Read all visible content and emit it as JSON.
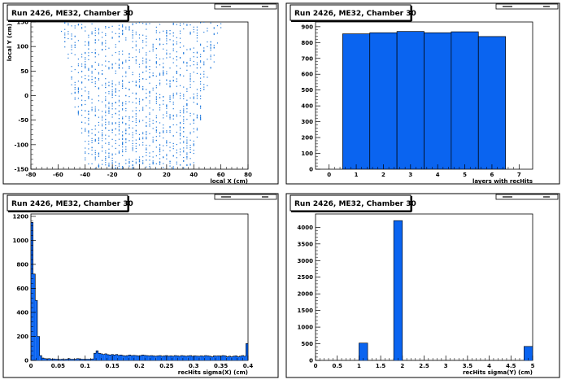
{
  "chart_data": [
    {
      "type": "scatter",
      "title": "Run 2426, ME32, Chamber 30",
      "xlabel": "local X (cm)",
      "ylabel": "local Y (cm)",
      "xlim": [
        -80,
        80
      ],
      "ylim": [
        -150,
        150
      ],
      "xticks": [
        -80,
        -60,
        -40,
        -20,
        0,
        20,
        40,
        60,
        80
      ],
      "yticks": [
        -150,
        -100,
        -50,
        0,
        50,
        100,
        150
      ],
      "color": "#1e78dc",
      "hit_region": {
        "y_bottom": -150,
        "y_top": 150,
        "x_half_width_bottom": 38,
        "x_half_width_top": 60
      }
    },
    {
      "type": "bar",
      "title": "Run 2426, ME32, Chamber 30",
      "xlabel": "layers with recHits",
      "ylabel": "",
      "xlim": [
        -0.5,
        7.5
      ],
      "ylim": [
        0,
        930
      ],
      "xticks": [
        0,
        1,
        2,
        3,
        4,
        5,
        6,
        7
      ],
      "yticks": [
        0,
        100,
        200,
        300,
        400,
        500,
        600,
        700,
        800,
        900
      ],
      "color": "#0a64f0",
      "bin_width": 1,
      "bins": [
        1,
        2,
        3,
        4,
        5,
        6
      ],
      "values": [
        855,
        862,
        870,
        862,
        868,
        838
      ]
    },
    {
      "type": "bar",
      "title": "Run 2426, ME32, Chamber 30",
      "xlabel": "recHits sigma(X) (cm)",
      "ylabel": "",
      "xlim": [
        0,
        0.4
      ],
      "ylim": [
        0,
        1220
      ],
      "xticks": [
        0,
        0.05,
        0.1,
        0.15,
        0.2,
        0.25,
        0.3,
        0.35,
        0.4
      ],
      "yticks": [
        0,
        200,
        400,
        600,
        800,
        1000,
        1200
      ],
      "color": "#0a64f0",
      "bin_width": 0.004,
      "values": [
        1150,
        720,
        500,
        200,
        40,
        20,
        15,
        12,
        15,
        10,
        12,
        10,
        10,
        8,
        10,
        8,
        10,
        15,
        10,
        10,
        10,
        15,
        12,
        10,
        10,
        10,
        10,
        10,
        12,
        60,
        80,
        60,
        55,
        50,
        55,
        48,
        45,
        50,
        45,
        50,
        42,
        45,
        40,
        38,
        40,
        45,
        40,
        42,
        40,
        38,
        40,
        45,
        42,
        40,
        38,
        40,
        38,
        35,
        38,
        40,
        35,
        38,
        40,
        35,
        38,
        35,
        40,
        38,
        35,
        40,
        38,
        35,
        38,
        40,
        35,
        38,
        36,
        35,
        38,
        35,
        40,
        38,
        35,
        30,
        38,
        36,
        38,
        35,
        40,
        38,
        30,
        35,
        30,
        35,
        38,
        30,
        35,
        40,
        35,
        140
      ]
    },
    {
      "type": "bar",
      "title": "Run 2426, ME32, Chamber 30",
      "xlabel": "recHits sigma(Y) (cm)",
      "ylabel": "",
      "xlim": [
        0,
        5
      ],
      "ylim": [
        0,
        4400
      ],
      "xticks": [
        0,
        0.5,
        1,
        1.5,
        2,
        2.5,
        3,
        3.5,
        4,
        4.5,
        5
      ],
      "yticks": [
        0,
        500,
        1000,
        1500,
        2000,
        2500,
        3000,
        3500,
        4000
      ],
      "color": "#0a64f0",
      "bin_width": 0.2,
      "values": [
        0,
        0,
        0,
        0,
        0,
        520,
        0,
        0,
        0,
        4200,
        0,
        0,
        0,
        0,
        0,
        0,
        0,
        0,
        0,
        0,
        0,
        0,
        0,
        0,
        420
      ]
    }
  ]
}
